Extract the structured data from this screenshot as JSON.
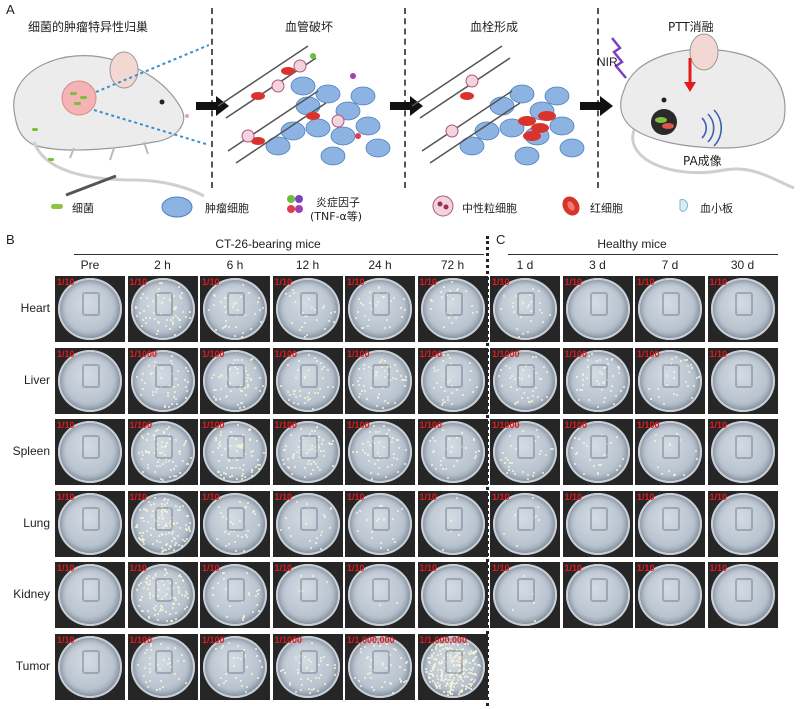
{
  "panels": {
    "A": "A",
    "B": "B",
    "C": "C"
  },
  "stages": [
    {
      "title": "细菌的肿瘤特异性归巢"
    },
    {
      "title": "血管破坏"
    },
    {
      "title": "血栓形成"
    },
    {
      "title": "PTT消融"
    }
  ],
  "stage4_labels": {
    "nir": "NIR",
    "pa": "PA成像"
  },
  "legend": {
    "bacteria": "细菌",
    "tumor_cell": "肿瘤细胞",
    "cytokine_line1": "炎症因子",
    "cytokine_line2": "(TNF-α等)",
    "neutrophil": "中性粒细胞",
    "rbc": "红细胞",
    "platelet": "血小板"
  },
  "group_b": {
    "title": "CT-26-bearing mice",
    "columns": [
      "Pre",
      "2 h",
      "6 h",
      "12 h",
      "24 h",
      "72 h"
    ]
  },
  "group_c": {
    "title": "Healthy mice",
    "columns": [
      "1 d",
      "3 d",
      "7 d",
      "30 d"
    ]
  },
  "rows": [
    "Heart",
    "Liver",
    "Spleen",
    "Lung",
    "Kidney",
    "Tumor"
  ],
  "dilutions_b": [
    [
      "1/10",
      "1/10",
      "1/10",
      "1/10",
      "1/10",
      "1/10"
    ],
    [
      "1/10",
      "1/1000",
      "1/100",
      "1/100",
      "1/100",
      "1/100"
    ],
    [
      "1/10",
      "1/100",
      "1/100",
      "1/100",
      "1/100",
      "1/100"
    ],
    [
      "1/10",
      "1/10",
      "1/10",
      "1/10",
      "1/10",
      "1/10"
    ],
    [
      "1/10",
      "1/10",
      "1/10",
      "1/10",
      "1/10",
      "1/10"
    ],
    [
      "1/10",
      "1/100",
      "1/100",
      "1/1000",
      "1/1,000,000",
      "1/1,000,000"
    ]
  ],
  "dilutions_c": [
    [
      "1/10",
      "1/10",
      "1/10",
      "1/10"
    ],
    [
      "1/1000",
      "1/100",
      "1/100",
      "1/10"
    ],
    [
      "1/1000",
      "1/100",
      "1/100",
      "1/10"
    ],
    [
      "1/10",
      "1/10",
      "1/10",
      "1/10"
    ],
    [
      "1/10",
      "1/10",
      "1/10",
      "1/10"
    ]
  ],
  "colony_density_b": [
    [
      0,
      60,
      35,
      25,
      30,
      22
    ],
    [
      0,
      45,
      55,
      40,
      50,
      30
    ],
    [
      0,
      70,
      75,
      60,
      45,
      30
    ],
    [
      0,
      120,
      30,
      20,
      20,
      5
    ],
    [
      0,
      90,
      25,
      5,
      2,
      0
    ],
    [
      0,
      35,
      30,
      40,
      45,
      260
    ]
  ],
  "colony_density_c": [
    [
      25,
      0,
      0,
      0
    ],
    [
      40,
      45,
      30,
      0
    ],
    [
      30,
      25,
      15,
      0
    ],
    [
      10,
      0,
      0,
      0
    ],
    [
      5,
      0,
      0,
      0
    ]
  ],
  "colors": {
    "dilution_label": "#e3191c",
    "tumor_cell": "#6f9ed6",
    "rbc": "#d9342b",
    "neutrophil": "#c9778f",
    "bacteria": "#8cc63f"
  }
}
